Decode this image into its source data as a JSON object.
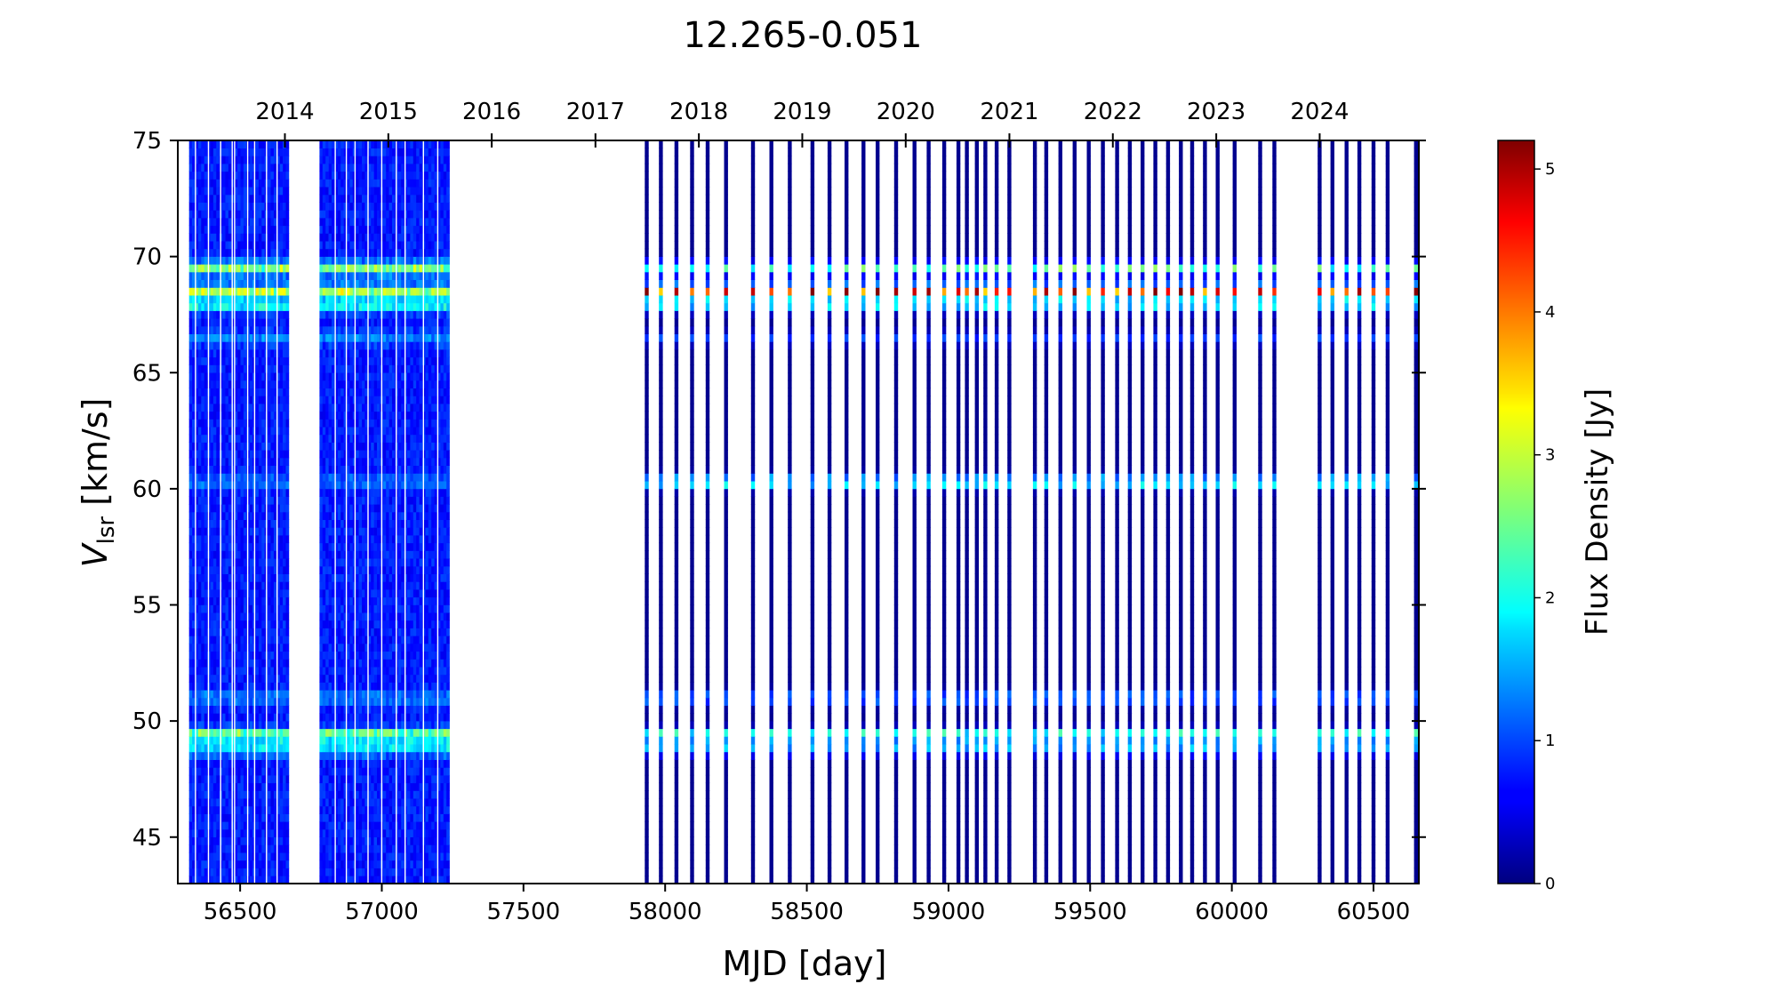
{
  "chart_data": {
    "type": "heatmap",
    "title": "12.265-0.051",
    "xlabel": "MJD [day]",
    "ylabel_main": "V",
    "ylabel_sub": "lsr",
    "ylabel_unit": " [km/s]",
    "xlim": [
      56280,
      60660
    ],
    "ylim": [
      43,
      75
    ],
    "x_ticks": [
      56500,
      57000,
      57500,
      58000,
      58500,
      59000,
      59500,
      60000,
      60500
    ],
    "y_ticks": [
      45,
      50,
      55,
      60,
      65,
      70,
      75
    ],
    "top_axis_years": [
      {
        "label": "2014",
        "mjd": 56658
      },
      {
        "label": "2015",
        "mjd": 57023
      },
      {
        "label": "2016",
        "mjd": 57388
      },
      {
        "label": "2017",
        "mjd": 57754
      },
      {
        "label": "2018",
        "mjd": 58119
      },
      {
        "label": "2019",
        "mjd": 58484
      },
      {
        "label": "2020",
        "mjd": 58849
      },
      {
        "label": "2021",
        "mjd": 59215
      },
      {
        "label": "2022",
        "mjd": 59580
      },
      {
        "label": "2023",
        "mjd": 59945
      },
      {
        "label": "2024",
        "mjd": 60310
      }
    ],
    "colorbar": {
      "label": "Flux Density [Jy]",
      "range": [
        0,
        5.2
      ],
      "ticks": [
        0,
        1,
        2,
        3,
        4,
        5
      ],
      "colormap": "jet"
    },
    "dense_blocks_mjd": [
      [
        56320,
        56665
      ],
      [
        56780,
        57230
      ]
    ],
    "observations_mjd": [
      57935,
      57985,
      58040,
      58095,
      58150,
      58215,
      58310,
      58375,
      58440,
      58520,
      58580,
      58640,
      58700,
      58750,
      58815,
      58880,
      58930,
      58985,
      59035,
      59065,
      59100,
      59130,
      59170,
      59215,
      59305,
      59345,
      59395,
      59445,
      59495,
      59545,
      59595,
      59640,
      59685,
      59730,
      59775,
      59820,
      59860,
      59905,
      59950,
      60010,
      60100,
      60150,
      60310,
      60355,
      60405,
      60450,
      60500,
      60550,
      60650
    ],
    "maser_features": [
      {
        "velocity_kms": 68.5,
        "peak_flux_jy_early": 2.2,
        "peak_flux_jy_late": 4.6
      },
      {
        "velocity_kms": 69.5,
        "peak_flux_jy_early": 2.0,
        "peak_flux_jy_late": 2.4
      },
      {
        "velocity_kms": 67.9,
        "peak_flux_jy_early": 1.3,
        "peak_flux_jy_late": 1.8
      },
      {
        "velocity_kms": 60.3,
        "peak_flux_jy_early": 0.5,
        "peak_flux_jy_late": 2.2
      },
      {
        "velocity_kms": 51.0,
        "peak_flux_jy_early": 0.6,
        "peak_flux_jy_late": 1.4
      },
      {
        "velocity_kms": 49.4,
        "peak_flux_jy_early": 2.0,
        "peak_flux_jy_late": 2.3
      },
      {
        "velocity_kms": 48.8,
        "peak_flux_jy_early": 1.1,
        "peak_flux_jy_late": 1.5
      },
      {
        "velocity_kms": 66.5,
        "peak_flux_jy_early": 0.6,
        "peak_flux_jy_late": 0.9
      }
    ]
  }
}
